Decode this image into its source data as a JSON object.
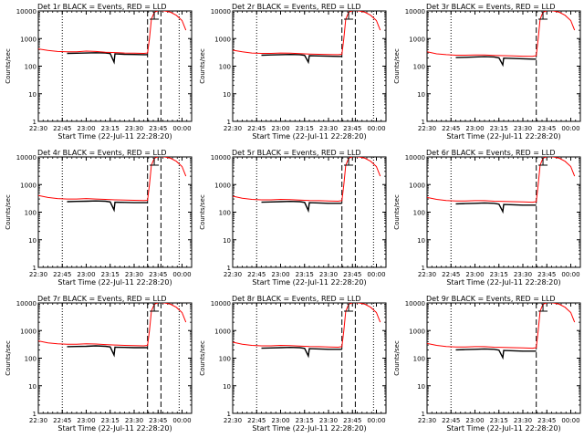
{
  "chart_data": {
    "type": "line",
    "layout": {
      "rows": 3,
      "cols": 3
    },
    "x_tick_labels": [
      "22:30",
      "22:45",
      "23:00",
      "23:15",
      "23:30",
      "23:45",
      "00:00"
    ],
    "x_tick_hours": [
      0,
      0.25,
      0.5,
      0.75,
      1.0,
      1.25,
      1.5
    ],
    "xlim_hours": [
      0,
      1.6
    ],
    "y_scale": "log",
    "ylim": [
      1,
      10000
    ],
    "y_tick_labels": [
      "1",
      "10",
      "100",
      "1000",
      "10000"
    ],
    "y_ticks": [
      1,
      10,
      100,
      1000,
      10000
    ],
    "ylabel": "Counts/sec",
    "xlabel": "Start Time (22-Jul-11 22:28:20)",
    "series_colors": {
      "events": "#000000",
      "lld": "#ff0000"
    },
    "panels": [
      {
        "title": "Det 1r BLACK = Events, RED = LLD",
        "events": {
          "x": [
            0.3,
            0.4,
            0.5,
            0.6,
            0.7,
            0.75,
            0.79,
            0.8,
            0.9,
            1.0,
            1.1,
            1.14
          ],
          "y": [
            290,
            295,
            300,
            305,
            300,
            285,
            140,
            280,
            270,
            265,
            260,
            260
          ]
        },
        "lld": {
          "x": [
            0.0,
            0.1,
            0.2,
            0.3,
            0.4,
            0.5,
            0.6,
            0.7,
            0.8,
            0.9,
            1.0,
            1.1,
            1.14,
            1.16,
            1.18,
            1.21,
            1.26,
            1.32,
            1.38,
            1.44,
            1.5,
            1.52,
            1.54
          ],
          "y": [
            420,
            370,
            340,
            330,
            330,
            350,
            340,
            320,
            310,
            300,
            295,
            290,
            300,
            1000,
            5000,
            9000,
            10500,
            10000,
            9000,
            7000,
            4500,
            3000,
            2000
          ]
        },
        "vlines_dotted": [
          0.25,
          1.47
        ],
        "vlines_dashed": [
          1.14,
          1.28
        ],
        "marker_x": 1.21
      },
      {
        "title": "Det 2r BLACK = Events, RED = LLD",
        "events": {
          "x": [
            0.3,
            0.4,
            0.5,
            0.6,
            0.7,
            0.75,
            0.79,
            0.8,
            0.9,
            1.0,
            1.1,
            1.14
          ],
          "y": [
            250,
            255,
            260,
            265,
            260,
            245,
            140,
            240,
            235,
            230,
            225,
            225
          ]
        },
        "lld": {
          "x": [
            0.0,
            0.1,
            0.2,
            0.3,
            0.4,
            0.5,
            0.6,
            0.7,
            0.8,
            0.9,
            1.0,
            1.1,
            1.14,
            1.16,
            1.18,
            1.21,
            1.26,
            1.32,
            1.38,
            1.44,
            1.5,
            1.52,
            1.54
          ],
          "y": [
            380,
            330,
            300,
            290,
            290,
            300,
            295,
            285,
            275,
            270,
            265,
            260,
            270,
            1000,
            5000,
            9000,
            10500,
            10000,
            9000,
            7000,
            4500,
            3000,
            2000
          ]
        },
        "vlines_dotted": [
          0.25,
          1.47
        ],
        "vlines_dashed": [
          1.14,
          1.28
        ],
        "marker_x": 1.21
      },
      {
        "title": "Det 3r BLACK = Events, RED = LLD",
        "events": {
          "x": [
            0.3,
            0.4,
            0.5,
            0.6,
            0.7,
            0.75,
            0.79,
            0.8,
            0.9,
            1.0,
            1.1,
            1.14
          ],
          "y": [
            205,
            210,
            215,
            220,
            215,
            200,
            110,
            195,
            190,
            185,
            180,
            180
          ]
        },
        "lld": {
          "x": [
            0.0,
            0.1,
            0.2,
            0.3,
            0.4,
            0.5,
            0.6,
            0.7,
            0.8,
            0.9,
            1.0,
            1.1,
            1.14,
            1.16,
            1.18,
            1.21,
            1.26,
            1.32,
            1.38,
            1.44,
            1.5,
            1.52,
            1.54
          ],
          "y": [
            330,
            280,
            260,
            250,
            250,
            255,
            255,
            245,
            240,
            235,
            230,
            225,
            240,
            1000,
            5000,
            9000,
            10500,
            10000,
            9000,
            7000,
            4500,
            3000,
            2000
          ]
        },
        "vlines_dotted": [
          0.25
        ],
        "vlines_dashed": [
          1.14
        ],
        "marker_x": 1.21
      },
      {
        "title": "Det 4r BLACK = Events, RED = LLD",
        "events": {
          "x": [
            0.3,
            0.4,
            0.5,
            0.6,
            0.7,
            0.75,
            0.79,
            0.8,
            0.9,
            1.0,
            1.1,
            1.14
          ],
          "y": [
            240,
            245,
            250,
            255,
            250,
            235,
            120,
            230,
            225,
            220,
            220,
            220
          ]
        },
        "lld": {
          "x": [
            0.0,
            0.1,
            0.2,
            0.3,
            0.4,
            0.5,
            0.6,
            0.7,
            0.8,
            0.9,
            1.0,
            1.1,
            1.14,
            1.16,
            1.18,
            1.21,
            1.26,
            1.32,
            1.38,
            1.44,
            1.5,
            1.52,
            1.54
          ],
          "y": [
            400,
            340,
            310,
            300,
            300,
            310,
            300,
            290,
            280,
            275,
            270,
            265,
            270,
            1000,
            5000,
            9000,
            10500,
            10000,
            9000,
            7000,
            4500,
            3000,
            2000
          ]
        },
        "vlines_dotted": [
          0.25,
          1.47
        ],
        "vlines_dashed": [
          1.14,
          1.28
        ],
        "marker_x": 1.21
      },
      {
        "title": "Det 5r BLACK = Events, RED = LLD",
        "events": {
          "x": [
            0.3,
            0.4,
            0.5,
            0.6,
            0.7,
            0.75,
            0.79,
            0.8,
            0.9,
            1.0,
            1.1,
            1.14
          ],
          "y": [
            230,
            235,
            240,
            245,
            240,
            225,
            115,
            220,
            215,
            210,
            210,
            210
          ]
        },
        "lld": {
          "x": [
            0.0,
            0.1,
            0.2,
            0.3,
            0.4,
            0.5,
            0.6,
            0.7,
            0.8,
            0.9,
            1.0,
            1.1,
            1.14,
            1.16,
            1.18,
            1.21,
            1.26,
            1.32,
            1.38,
            1.44,
            1.5,
            1.52,
            1.54
          ],
          "y": [
            380,
            320,
            290,
            280,
            280,
            290,
            285,
            275,
            265,
            260,
            255,
            250,
            260,
            1000,
            5000,
            9000,
            10500,
            10000,
            9000,
            7000,
            4500,
            3000,
            2000
          ]
        },
        "vlines_dotted": [
          0.25,
          1.47
        ],
        "vlines_dashed": [
          1.14,
          1.28
        ],
        "marker_x": 1.21
      },
      {
        "title": "Det 6r BLACK = Events, RED = LLD",
        "events": {
          "x": [
            0.3,
            0.4,
            0.5,
            0.6,
            0.7,
            0.75,
            0.79,
            0.8,
            0.9,
            1.0,
            1.1,
            1.14
          ],
          "y": [
            200,
            205,
            210,
            215,
            210,
            195,
            105,
            190,
            185,
            180,
            180,
            180
          ]
        },
        "lld": {
          "x": [
            0.0,
            0.1,
            0.2,
            0.3,
            0.4,
            0.5,
            0.6,
            0.7,
            0.8,
            0.9,
            1.0,
            1.1,
            1.14,
            1.16,
            1.18,
            1.21,
            1.26,
            1.32,
            1.38,
            1.44,
            1.5,
            1.52,
            1.54
          ],
          "y": [
            340,
            290,
            265,
            255,
            255,
            260,
            260,
            250,
            245,
            240,
            235,
            230,
            240,
            1000,
            5000,
            9000,
            10500,
            10000,
            9000,
            7000,
            4500,
            3000,
            2000
          ]
        },
        "vlines_dotted": [
          0.25
        ],
        "vlines_dashed": [
          1.14
        ],
        "marker_x": 1.21
      },
      {
        "title": "Det 7r BLACK = Events, RED = LLD",
        "events": {
          "x": [
            0.3,
            0.4,
            0.5,
            0.6,
            0.7,
            0.75,
            0.79,
            0.8,
            0.9,
            1.0,
            1.1,
            1.14
          ],
          "y": [
            260,
            265,
            270,
            280,
            270,
            255,
            130,
            250,
            245,
            240,
            240,
            240
          ]
        },
        "lld": {
          "x": [
            0.0,
            0.1,
            0.2,
            0.3,
            0.4,
            0.5,
            0.6,
            0.7,
            0.8,
            0.9,
            1.0,
            1.1,
            1.14,
            1.16,
            1.18,
            1.21,
            1.26,
            1.32,
            1.38,
            1.44,
            1.5,
            1.52,
            1.54
          ],
          "y": [
            420,
            360,
            330,
            320,
            320,
            330,
            325,
            310,
            300,
            290,
            285,
            280,
            290,
            1000,
            5000,
            9000,
            10500,
            10000,
            9000,
            7000,
            4500,
            3000,
            2000
          ]
        },
        "vlines_dotted": [
          0.25,
          1.47
        ],
        "vlines_dashed": [
          1.14,
          1.28
        ],
        "marker_x": 1.21
      },
      {
        "title": "Det 8r BLACK = Events, RED = LLD",
        "events": {
          "x": [
            0.3,
            0.4,
            0.5,
            0.6,
            0.7,
            0.75,
            0.79,
            0.8,
            0.9,
            1.0,
            1.1,
            1.14
          ],
          "y": [
            230,
            235,
            240,
            245,
            240,
            225,
            120,
            220,
            215,
            210,
            210,
            210
          ]
        },
        "lld": {
          "x": [
            0.0,
            0.1,
            0.2,
            0.3,
            0.4,
            0.5,
            0.6,
            0.7,
            0.8,
            0.9,
            1.0,
            1.1,
            1.14,
            1.16,
            1.18,
            1.21,
            1.26,
            1.32,
            1.38,
            1.44,
            1.5,
            1.52,
            1.54
          ],
          "y": [
            380,
            320,
            290,
            280,
            280,
            290,
            285,
            275,
            265,
            260,
            255,
            250,
            260,
            1000,
            5000,
            9000,
            10500,
            10000,
            9000,
            7000,
            4500,
            3000,
            2000
          ]
        },
        "vlines_dotted": [
          0.25,
          1.47
        ],
        "vlines_dashed": [
          1.14,
          1.28
        ],
        "marker_x": 1.21
      },
      {
        "title": "Det 9r BLACK = Events, RED = LLD",
        "events": {
          "x": [
            0.3,
            0.4,
            0.5,
            0.6,
            0.7,
            0.75,
            0.79,
            0.8,
            0.9,
            1.0,
            1.1,
            1.14
          ],
          "y": [
            200,
            205,
            210,
            215,
            210,
            195,
            105,
            190,
            185,
            180,
            180,
            180
          ]
        },
        "lld": {
          "x": [
            0.0,
            0.1,
            0.2,
            0.3,
            0.4,
            0.5,
            0.6,
            0.7,
            0.8,
            0.9,
            1.0,
            1.1,
            1.14,
            1.16,
            1.18,
            1.21,
            1.26,
            1.32,
            1.38,
            1.44,
            1.5,
            1.52,
            1.54
          ],
          "y": [
            340,
            290,
            265,
            255,
            255,
            260,
            260,
            250,
            245,
            240,
            235,
            230,
            240,
            1000,
            5000,
            9000,
            10500,
            10000,
            9000,
            7000,
            4500,
            3000,
            2000
          ]
        },
        "vlines_dotted": [
          0.25
        ],
        "vlines_dashed": [
          1.14
        ],
        "marker_x": 1.21
      }
    ]
  }
}
